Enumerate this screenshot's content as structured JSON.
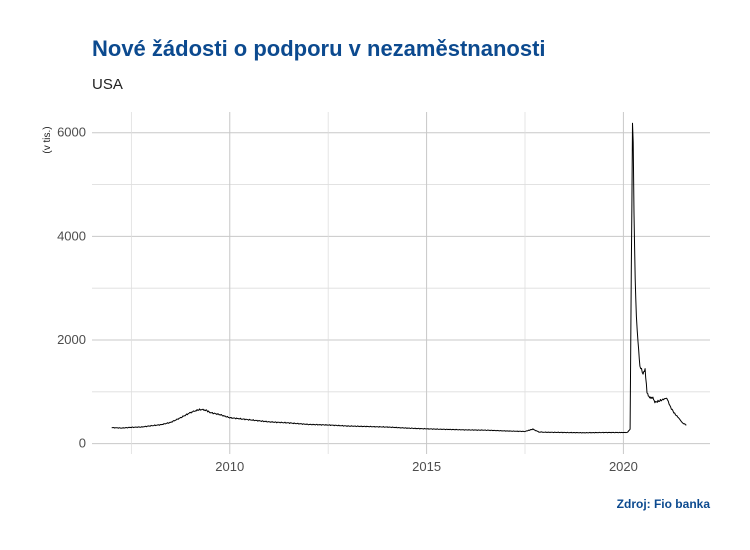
{
  "chart_data": {
    "type": "line",
    "title": "Nové žádosti o podporu v nezaměstnanosti",
    "subtitle": "USA",
    "ylabel": "(v tis.)",
    "xlabel": "",
    "caption": "Zdroj: Fio banka",
    "xlim": [
      2006.5,
      2022.2
    ],
    "ylim": [
      -200,
      6400
    ],
    "x_ticks": [
      2010,
      2015,
      2020
    ],
    "y_ticks": [
      0,
      2000,
      4000,
      6000
    ],
    "grid": true,
    "line_color": "#000000",
    "series": [
      {
        "x": [
          2007.0,
          2007.25,
          2007.5,
          2007.75,
          2008.0,
          2008.25,
          2008.5,
          2008.75,
          2009.0,
          2009.15,
          2009.25,
          2009.4,
          2009.5,
          2009.75,
          2010.0,
          2010.5,
          2011.0,
          2011.5,
          2012.0,
          2012.5,
          2013.0,
          2013.5,
          2014.0,
          2014.5,
          2015.0,
          2015.5,
          2016.0,
          2016.5,
          2017.0,
          2017.5,
          2017.7,
          2017.85,
          2018.0,
          2018.5,
          2019.0,
          2019.5,
          2019.9,
          2020.1,
          2020.17,
          2020.2,
          2020.23,
          2020.25,
          2020.27,
          2020.3,
          2020.33,
          2020.37,
          2020.42,
          2020.5,
          2020.55,
          2020.6,
          2020.65,
          2020.7,
          2020.75,
          2020.8,
          2020.9,
          2021.0,
          2021.1,
          2021.2,
          2021.3,
          2021.4,
          2021.5,
          2021.6
        ],
        "y": [
          310,
          300,
          315,
          320,
          345,
          365,
          410,
          500,
          600,
          640,
          660,
          645,
          600,
          560,
          500,
          460,
          420,
          400,
          370,
          360,
          340,
          330,
          320,
          300,
          285,
          275,
          265,
          260,
          245,
          235,
          280,
          225,
          220,
          215,
          210,
          215,
          215,
          215,
          280,
          3300,
          6150,
          5900,
          4400,
          3200,
          2400,
          2000,
          1500,
          1350,
          1450,
          1000,
          900,
          870,
          880,
          800,
          820,
          850,
          880,
          700,
          580,
          500,
          400,
          360
        ]
      }
    ]
  }
}
